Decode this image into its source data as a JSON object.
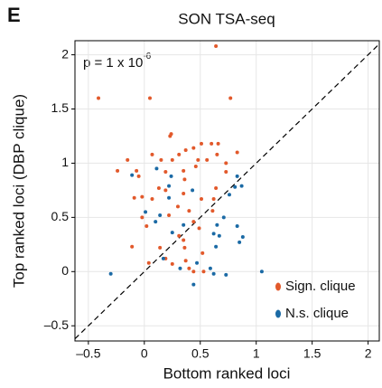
{
  "chart_data": {
    "type": "scatter",
    "panel_label": "E",
    "title": "SON TSA-seq",
    "x_label": "Bottom ranked loci",
    "y_label": "Top ranked loci (DBP clique)",
    "annotation": {
      "text": "p = 1 x 10",
      "superscript": "-6"
    },
    "xlim": [
      -0.62,
      2.1
    ],
    "ylim": [
      -0.64,
      2.13
    ],
    "xticks": [
      {
        "value": -0.5,
        "label": "–0.5"
      },
      0,
      0.5,
      1,
      1.5,
      2
    ],
    "yticks": [
      {
        "value": -0.5,
        "label": "–0.5"
      },
      0,
      0.5,
      1,
      1.5,
      2
    ],
    "grid": true,
    "diagonal": true,
    "legend": "lower right",
    "series": [
      {
        "name": "Sign. clique",
        "color": "#e2592b",
        "x": [
          0.64,
          -0.41,
          0.05,
          0.77,
          0.24,
          0.23,
          0.51,
          0.6,
          0.66,
          0.44,
          0.37,
          0.31,
          0.07,
          0.65,
          0.83,
          0.15,
          0.25,
          0.48,
          0.56,
          0.73,
          -0.15,
          0.46,
          -0.24,
          -0.07,
          -0.05,
          0.35,
          0.19,
          0.73,
          0.36,
          0.64,
          0.13,
          0.19,
          -0.09,
          -0.02,
          0.07,
          0.35,
          0.51,
          0.62,
          0.3,
          0.4,
          -0.02,
          0.22,
          0.61,
          0.02,
          0.44,
          0.31,
          0.49,
          -0.11,
          0.35,
          0.14,
          0.36,
          0.19,
          0.04,
          0.52,
          0.37,
          0.25,
          0.44,
          0.53,
          0.4
        ],
        "values": [
          2.08,
          1.6,
          1.6,
          1.6,
          1.27,
          1.25,
          1.18,
          1.18,
          1.18,
          1.14,
          1.12,
          1.08,
          1.08,
          1.08,
          1.1,
          1.03,
          1.03,
          1.03,
          1.03,
          1.0,
          1.03,
          0.97,
          0.93,
          0.93,
          0.88,
          0.93,
          0.92,
          0.92,
          0.85,
          0.77,
          0.77,
          0.75,
          0.68,
          0.69,
          0.67,
          0.72,
          0.67,
          0.67,
          0.6,
          0.56,
          0.5,
          0.52,
          0.56,
          0.42,
          0.46,
          0.33,
          0.4,
          0.23,
          0.29,
          0.22,
          0.22,
          0.12,
          0.08,
          0.17,
          0.1,
          0.07,
          0.0,
          0.0,
          0.03
        ]
      },
      {
        "name": "N.s. clique",
        "color": "#1b6aa5",
        "x": [
          -0.11,
          0.11,
          0.24,
          0.22,
          0.83,
          0.81,
          0.87,
          0.76,
          0.22,
          0.43,
          0.14,
          0.01,
          0.1,
          0.71,
          0.83,
          0.65,
          0.62,
          0.67,
          0.88,
          0.25,
          0.35,
          0.85,
          0.64,
          0.17,
          0.47,
          0.59,
          0.32,
          0.62,
          -0.3,
          1.05,
          0.73,
          0.44
        ],
        "values": [
          0.89,
          0.95,
          0.88,
          0.79,
          0.88,
          0.78,
          0.79,
          0.71,
          0.68,
          0.75,
          0.52,
          0.55,
          0.46,
          0.5,
          0.42,
          0.43,
          0.35,
          0.33,
          0.32,
          0.36,
          0.43,
          0.27,
          0.23,
          0.12,
          0.08,
          0.03,
          0.03,
          -0.02,
          -0.02,
          0.0,
          -0.03,
          -0.12
        ]
      }
    ]
  }
}
